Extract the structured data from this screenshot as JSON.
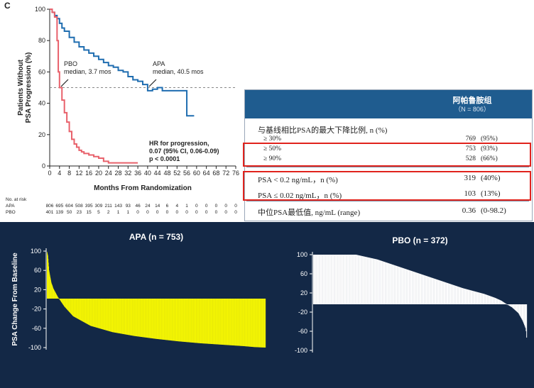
{
  "panel_letter": "C",
  "colors": {
    "apa": "#1f6db0",
    "pbo": "#e8616b",
    "navy": "#132846",
    "yellow": "#ffff00",
    "highlight": "#e0231d"
  },
  "chart_data": [
    {
      "type": "line",
      "title": "",
      "xlabel": "Months From Randomization",
      "ylabel": "Patients Without PSA Progression (%)",
      "xlim": [
        0,
        76
      ],
      "ylim": [
        0,
        100
      ],
      "xticks": [
        0,
        4,
        8,
        12,
        16,
        20,
        24,
        28,
        32,
        36,
        40,
        44,
        48,
        52,
        56,
        60,
        64,
        68,
        72,
        76
      ],
      "yticks": [
        0,
        20,
        40,
        60,
        80,
        100
      ],
      "reference_line": 50,
      "series": [
        {
          "name": "APA",
          "color": "#1f6db0",
          "x": [
            0,
            1,
            2,
            3,
            4,
            5,
            6,
            8,
            10,
            12,
            14,
            16,
            18,
            20,
            22,
            24,
            26,
            28,
            30,
            32,
            34,
            36,
            38,
            40,
            42,
            44,
            46,
            48,
            50,
            52,
            54,
            55,
            56,
            57,
            58,
            59
          ],
          "y": [
            100,
            98,
            96,
            94,
            91,
            88,
            86,
            82,
            79,
            76,
            74,
            72,
            70,
            68,
            66,
            64,
            63,
            61,
            60,
            57,
            55,
            54,
            52,
            48,
            49,
            50,
            48,
            48,
            48,
            48,
            48,
            48,
            32,
            32,
            32,
            32
          ]
        },
        {
          "name": "PBO",
          "color": "#e8616b",
          "x": [
            0,
            1,
            2,
            3,
            3.5,
            4,
            5,
            6,
            7,
            8,
            9,
            10,
            11,
            12,
            13,
            14,
            16,
            18,
            20,
            22,
            24,
            26,
            28,
            30,
            32,
            34,
            36
          ],
          "y": [
            100,
            98,
            95,
            80,
            60,
            50,
            42,
            34,
            28,
            22,
            17,
            14,
            12,
            10,
            9,
            8,
            7,
            6,
            5,
            3,
            2,
            2,
            2,
            2,
            2,
            2,
            2
          ]
        }
      ],
      "annotations": {
        "pbo": [
          "PBO",
          "median, 3.7 mos"
        ],
        "apa": [
          "APA",
          "median, 40.5 mos"
        ],
        "hr": [
          "HR for progression,",
          "0.07 (95% CI, 0.06-0.09)",
          "p < 0.0001"
        ]
      },
      "at_risk": {
        "title": "No. at risk",
        "APA": [
          "806",
          "695",
          "604",
          "508",
          "395",
          "309",
          "211",
          "143",
          "93",
          "46",
          "24",
          "14",
          "6",
          "4",
          "1",
          "0",
          "0",
          "0",
          "0",
          "0"
        ],
        "PBO": [
          "401",
          "139",
          "50",
          "23",
          "15",
          "5",
          "2",
          "1",
          "1",
          "0",
          "0",
          "0",
          "0",
          "0",
          "0",
          "0",
          "0",
          "0",
          "0",
          "0"
        ]
      }
    },
    {
      "type": "bar",
      "title": "APA (n = 753)",
      "ylabel": "PSA Change From Baseline",
      "yticks": [
        100,
        60,
        20,
        -20,
        -60,
        -100
      ],
      "color": "#ffff00",
      "n_bars": 753,
      "profile": {
        "fraction": [
          0,
          0.005,
          0.01,
          0.02,
          0.03,
          0.05,
          0.08,
          0.12,
          0.2,
          0.3,
          0.4,
          0.5,
          0.6,
          0.7,
          0.8,
          0.9,
          0.95,
          1.0
        ],
        "value": [
          100,
          90,
          60,
          35,
          22,
          5,
          -15,
          -35,
          -55,
          -68,
          -76,
          -82,
          -87,
          -91,
          -94,
          -97,
          -99,
          -100
        ]
      }
    },
    {
      "type": "bar",
      "title": "PBO (n = 372)",
      "yticks": [
        100,
        60,
        20,
        -20,
        -60,
        -100
      ],
      "color": "#ffffff",
      "n_bars": 372,
      "profile": {
        "fraction": [
          0,
          0.2,
          0.3,
          0.4,
          0.5,
          0.6,
          0.7,
          0.8,
          0.85,
          0.88,
          0.9,
          0.93,
          0.96,
          0.98,
          0.995,
          1.0
        ],
        "value": [
          100,
          100,
          90,
          75,
          60,
          45,
          30,
          18,
          10,
          4,
          -2,
          -10,
          -22,
          -38,
          -55,
          -80
        ]
      }
    }
  ],
  "table": {
    "header_title": "阿帕鲁胺组",
    "header_sub": "（N = 806）",
    "rows": [
      {
        "label": "与基线相比PSA的最大下降比例, n (%)",
        "n": "",
        "pct": ""
      },
      {
        "label": "≥ 30%",
        "n": "769",
        "pct": "(95%)"
      },
      {
        "label": "≥ 50%",
        "n": "753",
        "pct": "(93%)"
      },
      {
        "label": "≥ 90%",
        "n": "528",
        "pct": "(66%)"
      },
      {
        "label": "PSA < 0.2 ng/mL，n (%)",
        "n": "319",
        "pct": "(40%)"
      },
      {
        "label": "PSA ≤ 0.02 ng/mL，n (%)",
        "n": "103",
        "pct": "(13%)"
      },
      {
        "label": "中位PSA最低值, ng/mL (range)",
        "n": "0.36",
        "pct": "(0-98.2)"
      }
    ]
  }
}
